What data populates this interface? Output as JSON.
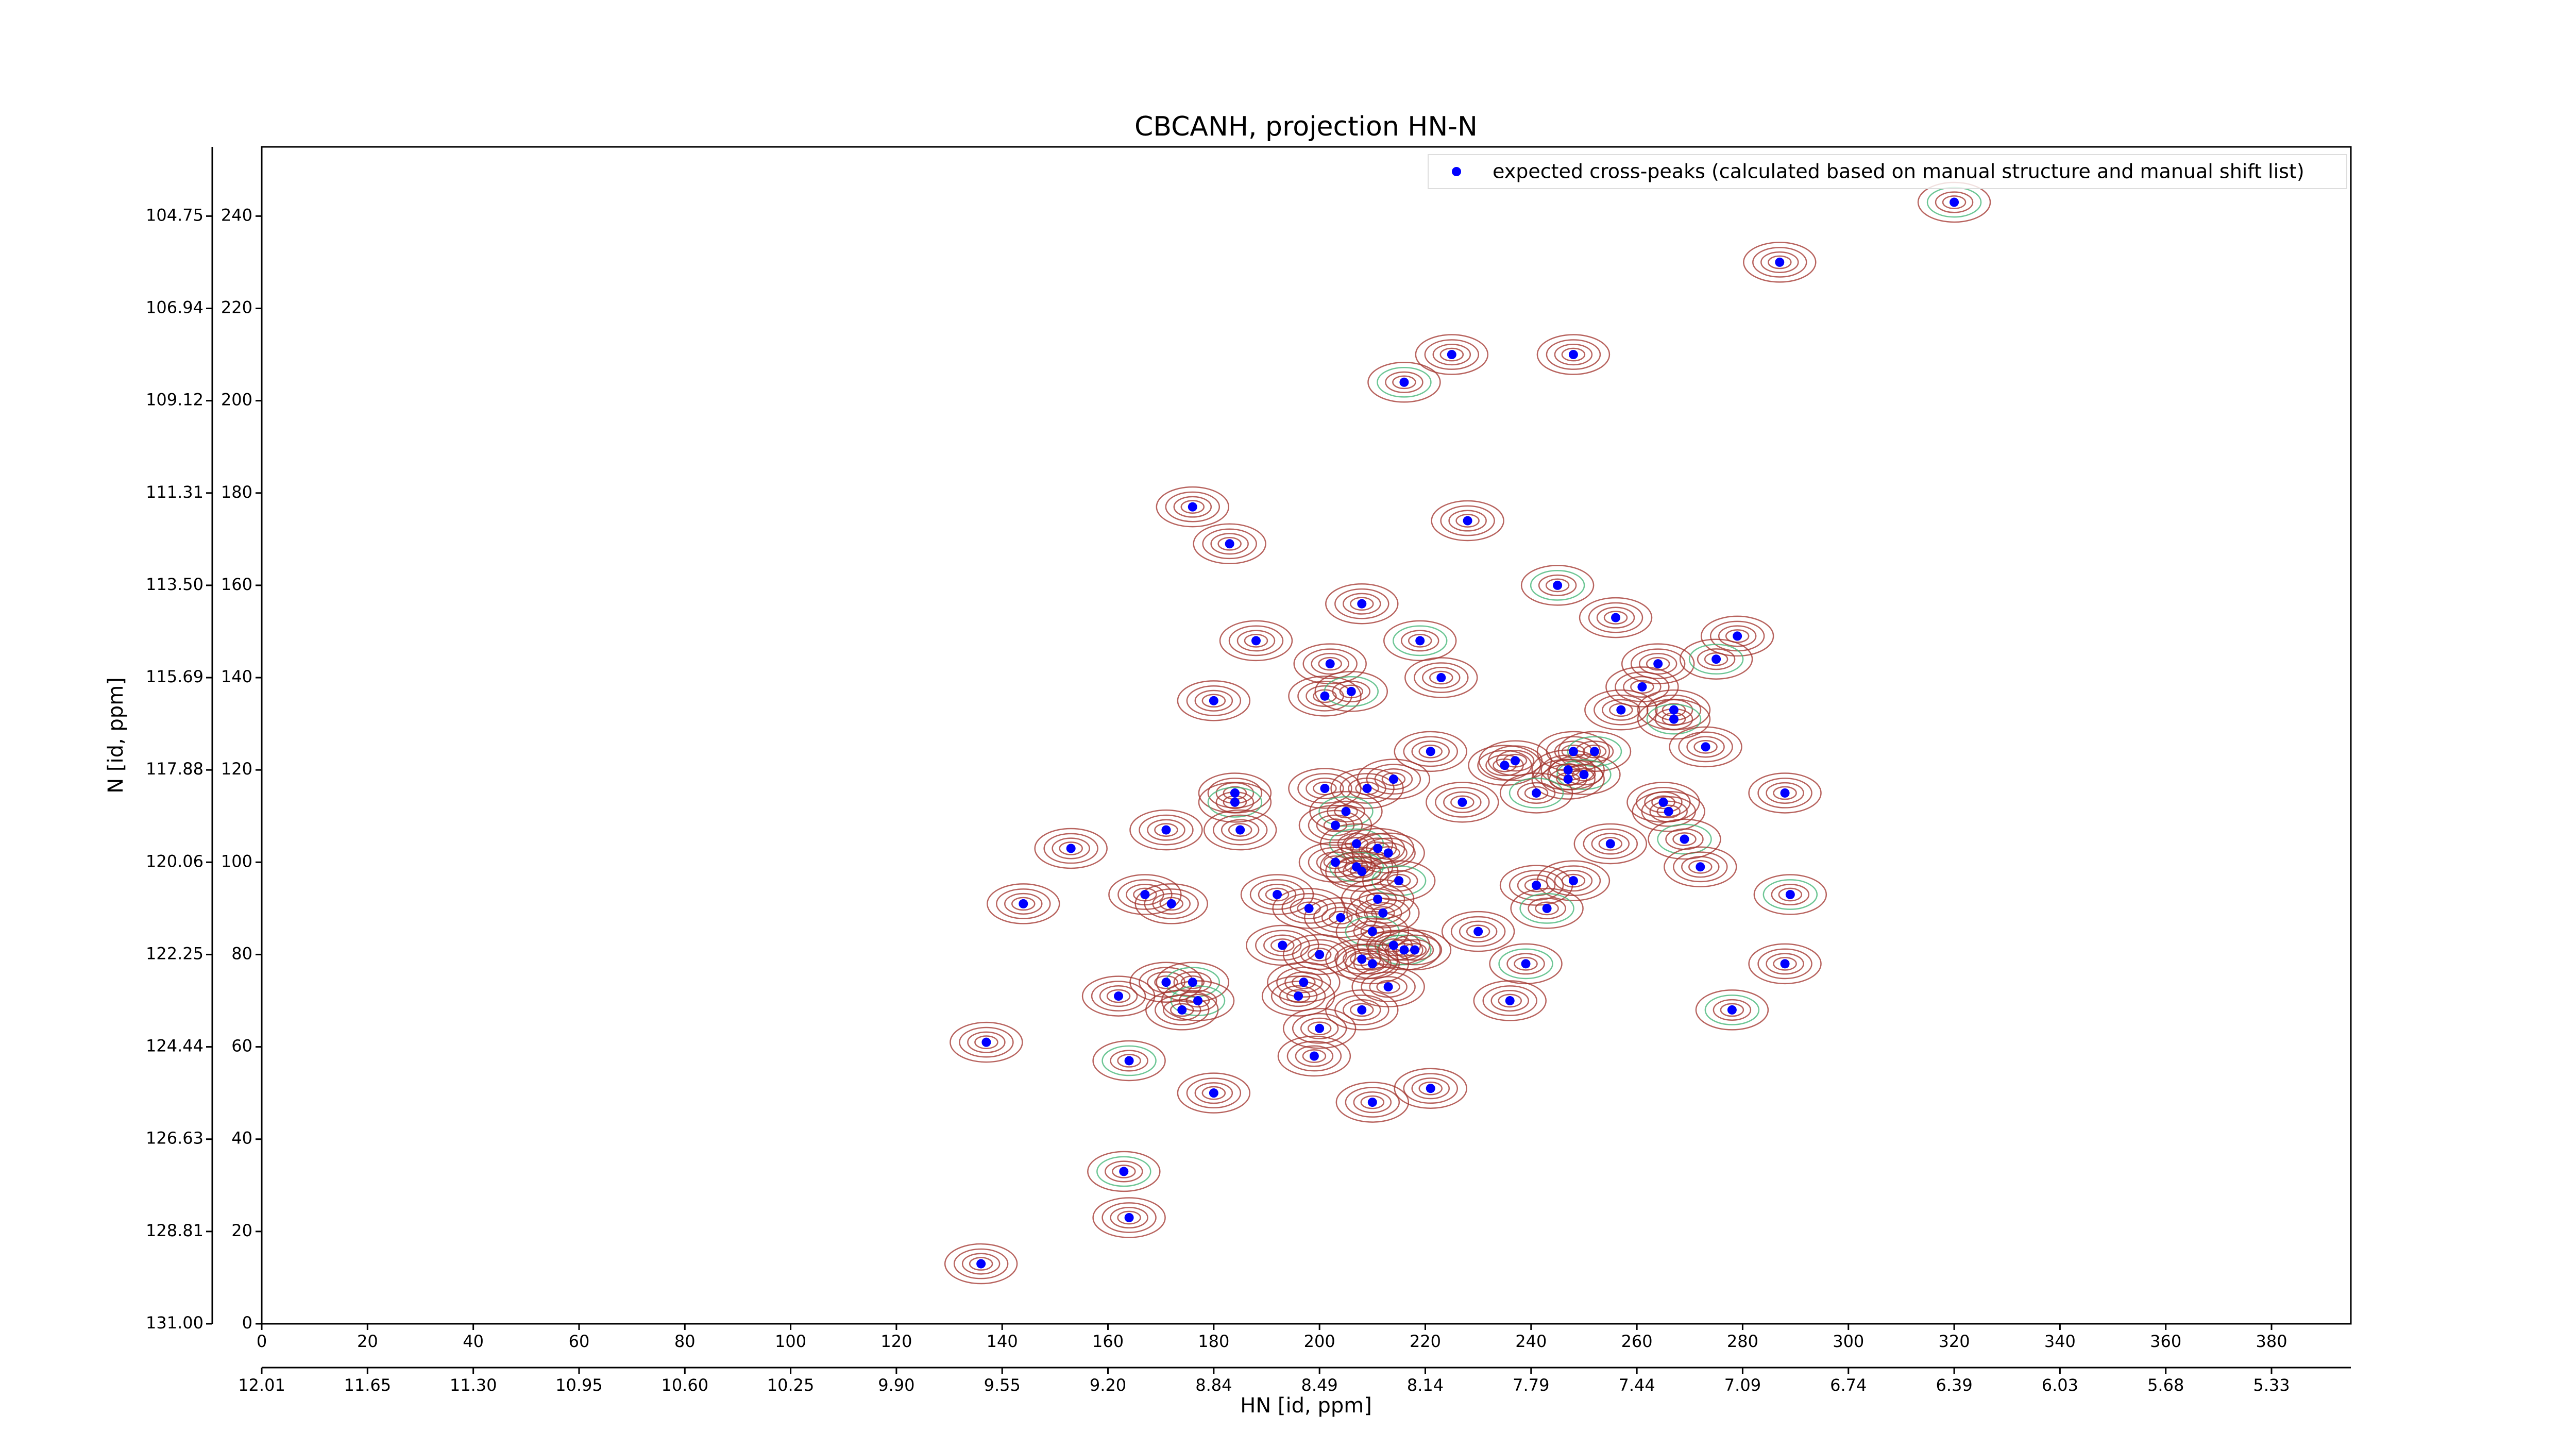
{
  "chart_data": {
    "type": "scatter",
    "title": "CBCANH, projection HN-N",
    "xlabel": "HN [id, ppm]",
    "ylabel": "N [id, ppm]",
    "xlim": [
      0,
      395
    ],
    "ylim": [
      0,
      255
    ],
    "xticks": [
      0,
      20,
      40,
      60,
      80,
      100,
      120,
      140,
      160,
      180,
      200,
      220,
      240,
      260,
      280,
      300,
      320,
      340,
      360,
      380
    ],
    "yticks": [
      0,
      20,
      40,
      60,
      80,
      100,
      120,
      140,
      160,
      180,
      200,
      220,
      240
    ],
    "x2ticks": [
      {
        "value": 0,
        "label": "12.01"
      },
      {
        "value": 20,
        "label": "11.65"
      },
      {
        "value": 40,
        "label": "11.30"
      },
      {
        "value": 60,
        "label": "10.95"
      },
      {
        "value": 80,
        "label": "10.60"
      },
      {
        "value": 100,
        "label": "10.25"
      },
      {
        "value": 120,
        "label": "9.90"
      },
      {
        "value": 140,
        "label": "9.55"
      },
      {
        "value": 160,
        "label": "9.20"
      },
      {
        "value": 180,
        "label": "8.84"
      },
      {
        "value": 200,
        "label": "8.49"
      },
      {
        "value": 220,
        "label": "8.14"
      },
      {
        "value": 240,
        "label": "7.79"
      },
      {
        "value": 260,
        "label": "7.44"
      },
      {
        "value": 280,
        "label": "7.09"
      },
      {
        "value": 300,
        "label": "6.74"
      },
      {
        "value": 320,
        "label": "6.39"
      },
      {
        "value": 340,
        "label": "6.03"
      },
      {
        "value": 360,
        "label": "5.68"
      },
      {
        "value": 380,
        "label": "5.33"
      }
    ],
    "y2ticks": [
      {
        "value": 0,
        "label": "131.00"
      },
      {
        "value": 20,
        "label": "128.81"
      },
      {
        "value": 40,
        "label": "126.63"
      },
      {
        "value": 60,
        "label": "124.44"
      },
      {
        "value": 80,
        "label": "122.25"
      },
      {
        "value": 100,
        "label": "120.06"
      },
      {
        "value": 120,
        "label": "117.88"
      },
      {
        "value": 140,
        "label": "115.69"
      },
      {
        "value": 160,
        "label": "113.50"
      },
      {
        "value": 180,
        "label": "111.31"
      },
      {
        "value": 200,
        "label": "109.12"
      },
      {
        "value": 220,
        "label": "106.94"
      },
      {
        "value": 240,
        "label": "104.75"
      }
    ],
    "legend": "upper right",
    "series": [
      {
        "name": "expected cross-peaks (calculated based on manual structure and manual shift list)",
        "color": "#0000ff",
        "x": [
          320,
          287,
          225,
          248,
          216,
          176,
          228,
          183,
          245,
          208,
          256,
          188,
          219,
          279,
          202,
          264,
          275,
          223,
          261,
          201,
          206,
          180,
          257,
          267,
          267,
          273,
          221,
          248,
          252,
          235,
          237,
          247,
          250,
          247,
          288,
          184,
          184,
          201,
          209,
          214,
          241,
          227,
          265,
          266,
          205,
          171,
          185,
          203,
          207,
          211,
          213,
          255,
          269,
          153,
          272,
          203,
          207,
          208,
          248,
          241,
          215,
          211,
          167,
          192,
          289,
          172,
          144,
          198,
          243,
          204,
          212,
          230,
          210,
          193,
          214,
          200,
          216,
          218,
          208,
          210,
          239,
          288,
          197,
          171,
          176,
          213,
          196,
          162,
          177,
          236,
          174,
          208,
          278,
          200,
          137,
          199,
          164,
          221,
          180,
          210,
          163,
          164,
          136
        ],
        "values": [
          243,
          230,
          210,
          210,
          204,
          177,
          174,
          169,
          160,
          156,
          153,
          148,
          148,
          149,
          143,
          143,
          144,
          140,
          138,
          136,
          137,
          135,
          133,
          133,
          131,
          125,
          124,
          124,
          124,
          121,
          122,
          120,
          119,
          118,
          115,
          115,
          113,
          116,
          116,
          118,
          115,
          113,
          113,
          111,
          111,
          107,
          107,
          108,
          104,
          103,
          102,
          104,
          105,
          103,
          99,
          100,
          99,
          98,
          96,
          95,
          96,
          92,
          93,
          93,
          93,
          91,
          91,
          90,
          90,
          88,
          89,
          85,
          85,
          82,
          82,
          80,
          81,
          81,
          79,
          78,
          78,
          78,
          74,
          74,
          74,
          73,
          71,
          71,
          70,
          70,
          68,
          68,
          68,
          64,
          61,
          58,
          57,
          51,
          50,
          48,
          33,
          23,
          13
        ]
      }
    ]
  }
}
